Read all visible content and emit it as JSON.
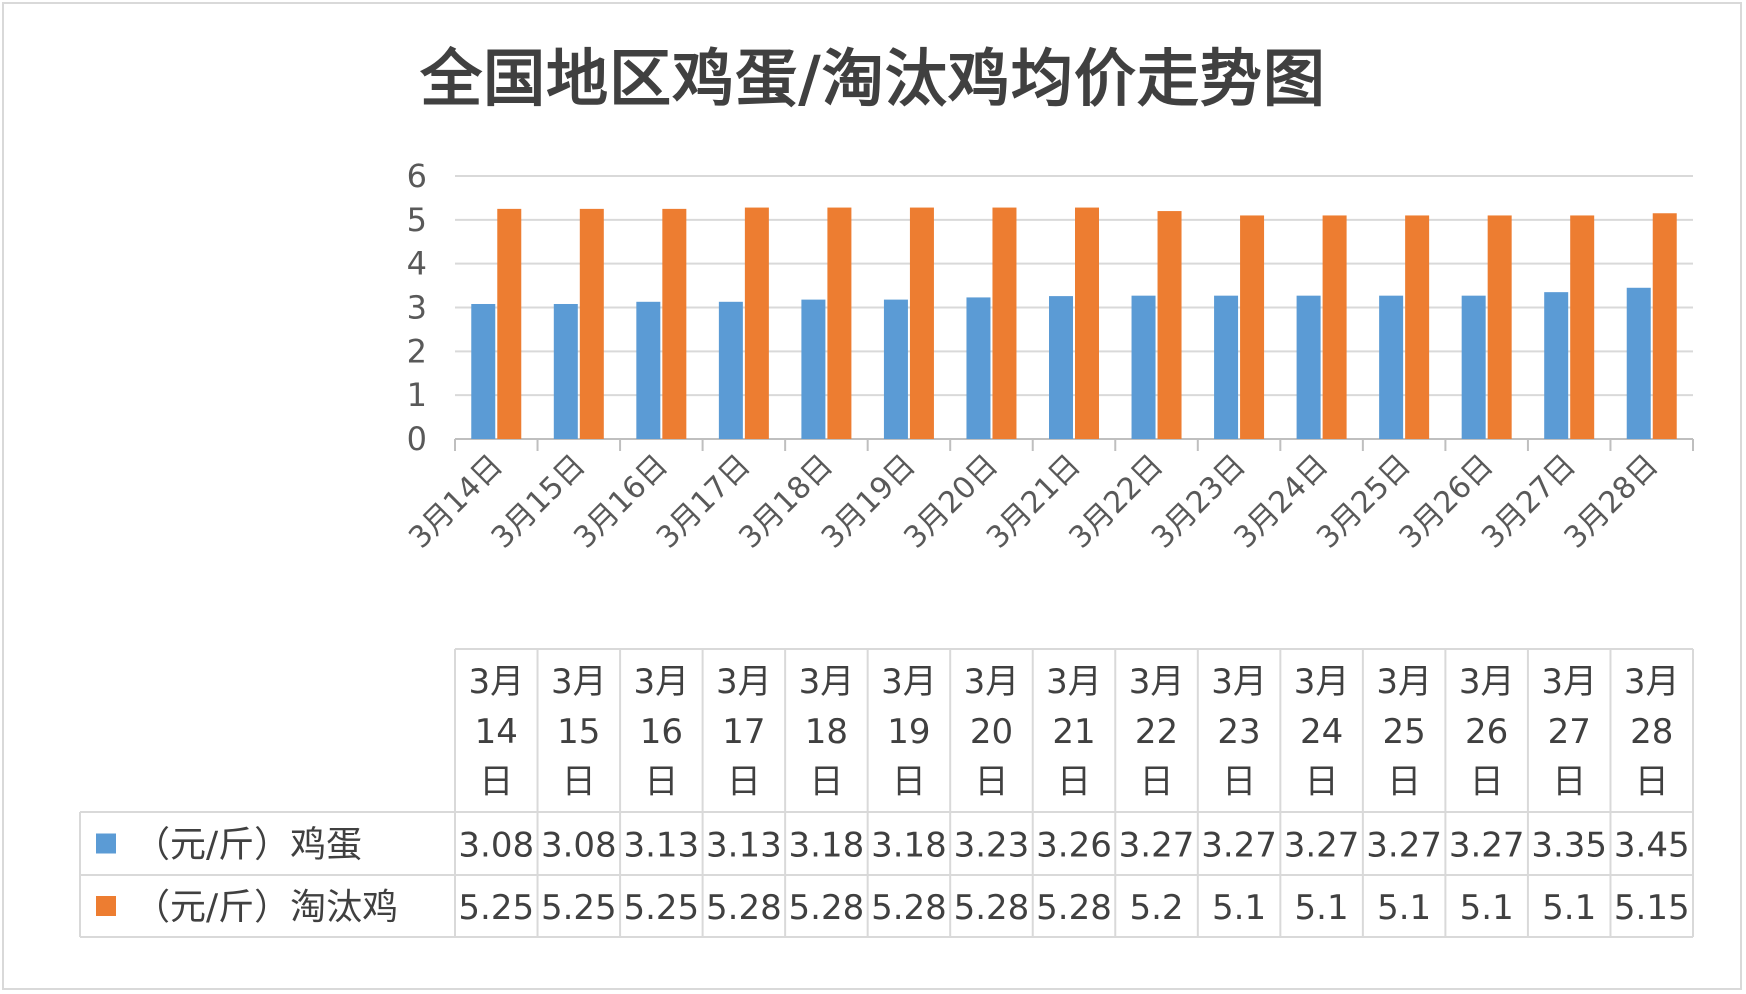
{
  "chart_data": {
    "type": "bar",
    "title": "全国地区鸡蛋/淘汰鸡均价走势图",
    "categories": [
      "3月14日",
      "3月15日",
      "3月16日",
      "3月17日",
      "3月18日",
      "3月19日",
      "3月20日",
      "3月21日",
      "3月22日",
      "3月23日",
      "3月24日",
      "3月25日",
      "3月26日",
      "3月27日",
      "3月28日"
    ],
    "table_header_lines": [
      [
        "3月",
        "14",
        "日"
      ],
      [
        "3月",
        "15",
        "日"
      ],
      [
        "3月",
        "16",
        "日"
      ],
      [
        "3月",
        "17",
        "日"
      ],
      [
        "3月",
        "18",
        "日"
      ],
      [
        "3月",
        "19",
        "日"
      ],
      [
        "3月",
        "20",
        "日"
      ],
      [
        "3月",
        "21",
        "日"
      ],
      [
        "3月",
        "22",
        "日"
      ],
      [
        "3月",
        "23",
        "日"
      ],
      [
        "3月",
        "24",
        "日"
      ],
      [
        "3月",
        "25",
        "日"
      ],
      [
        "3月",
        "26",
        "日"
      ],
      [
        "3月",
        "27",
        "日"
      ],
      [
        "3月",
        "28",
        "日"
      ]
    ],
    "series": [
      {
        "name": "（元/斤）鸡蛋",
        "color": "#5b9bd5",
        "values": [
          3.08,
          3.08,
          3.13,
          3.13,
          3.18,
          3.18,
          3.23,
          3.26,
          3.27,
          3.27,
          3.27,
          3.27,
          3.27,
          3.35,
          3.45
        ],
        "labels": [
          "3.08",
          "3.08",
          "3.13",
          "3.13",
          "3.18",
          "3.18",
          "3.23",
          "3.26",
          "3.27",
          "3.27",
          "3.27",
          "3.27",
          "3.27",
          "3.35",
          "3.45"
        ]
      },
      {
        "name": "（元/斤）淘汰鸡",
        "color": "#ed7d31",
        "values": [
          5.25,
          5.25,
          5.25,
          5.28,
          5.28,
          5.28,
          5.28,
          5.28,
          5.2,
          5.1,
          5.1,
          5.1,
          5.1,
          5.1,
          5.15
        ],
        "labels": [
          "5.25",
          "5.25",
          "5.25",
          "5.28",
          "5.28",
          "5.28",
          "5.28",
          "5.28",
          "5.2",
          "5.1",
          "5.1",
          "5.1",
          "5.1",
          "5.1",
          "5.15"
        ]
      }
    ],
    "ylim": [
      0,
      6
    ],
    "yticks": [
      "0",
      "1",
      "2",
      "3",
      "4",
      "5",
      "6"
    ],
    "grid": true,
    "legend": "data-table"
  },
  "colors": {
    "grid": "#d9d9d9",
    "axis": "#bfbfbf",
    "text": "#595959"
  }
}
